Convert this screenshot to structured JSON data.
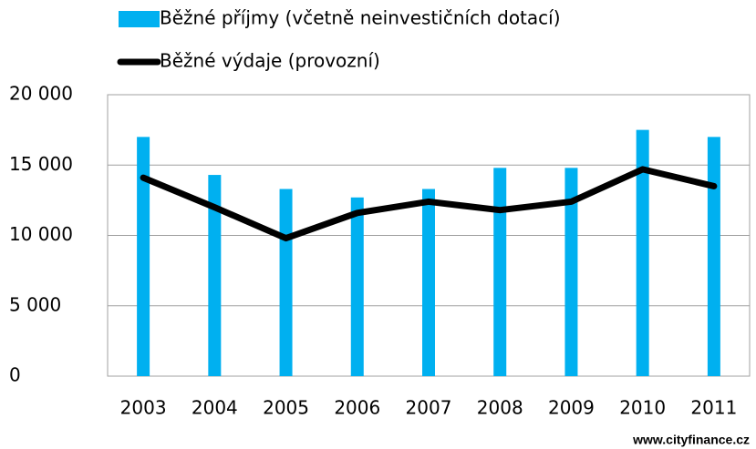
{
  "chart_data": {
    "type": "combo",
    "categories": [
      "2003",
      "2004",
      "2005",
      "2006",
      "2007",
      "2008",
      "2009",
      "2010",
      "2011"
    ],
    "series": [
      {
        "name": "Běžné příjmy (včetně neinvestičních dotací)",
        "type": "bar",
        "color": "#00b0f0",
        "values": [
          17000,
          14300,
          13300,
          12700,
          13300,
          14800,
          14800,
          17500,
          17000
        ]
      },
      {
        "name": "Běžné výdaje (provozní)",
        "type": "line",
        "color": "#000000",
        "values": [
          14100,
          12000,
          9800,
          11600,
          12400,
          11800,
          12400,
          14700,
          13500
        ]
      }
    ],
    "ylim": [
      0,
      20000
    ],
    "yticks": [
      0,
      {
        "value": 5000,
        "label": "5 000"
      },
      {
        "value": 10000,
        "label": "10 000"
      },
      {
        "value": 15000,
        "label": "15 000"
      },
      {
        "value": 20000,
        "label": "20 000"
      }
    ],
    "grid": true,
    "legend": "top",
    "source": "www.cityfinance.cz"
  }
}
